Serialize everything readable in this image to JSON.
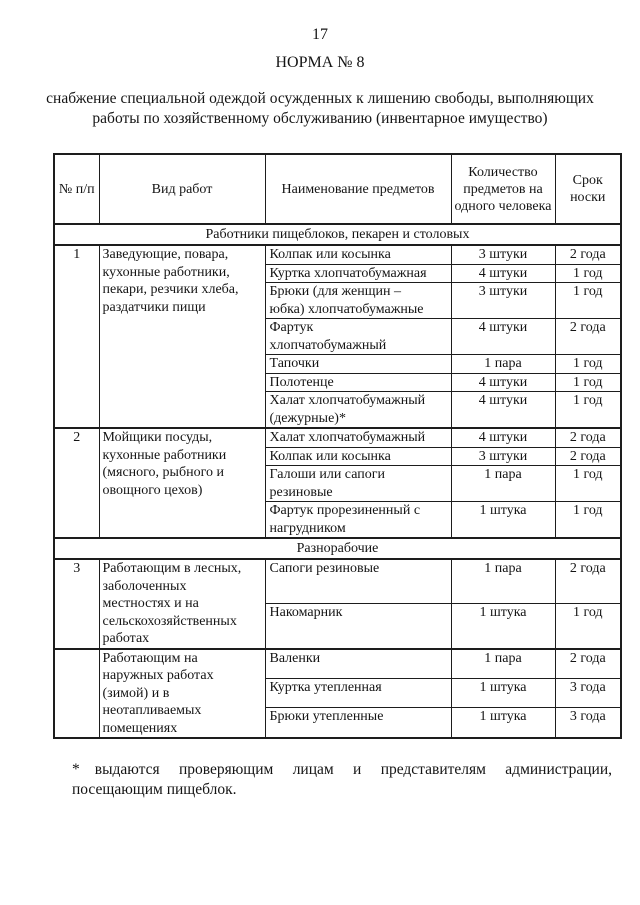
{
  "page": {
    "page_number": "17",
    "title": "НОРМА № 8",
    "subtitle": "снабжение специальной одеждой осужденных к лишению свободы, выполняющих\nработы по хозяйственному обслуживанию (инвентарное имущество)",
    "footnote_marker": "*",
    "footnote_text": "выдаются проверяющим лицам и представителям администрации, посещающим пищеблок."
  },
  "table": {
    "headers": [
      "№ п/п",
      "Вид работ",
      "Наименование предметов",
      "Количество предметов на одного человека",
      "Срок носки"
    ],
    "sections": [
      {
        "section_title": "Работники пищеблоков, пекарен и столовых",
        "groups": [
          {
            "num": "1",
            "work_type": "Заведующие, повара,\nкухонные работники,\nпекари, резчики хлеба,\nраздатчики пищи",
            "items": [
              {
                "name": "Колпак или косынка",
                "qty": "3 штуки",
                "term": "2 года"
              },
              {
                "name": "Куртка хлопчатобумажная",
                "qty": "4 штуки",
                "term": "1 год"
              },
              {
                "name": "Брюки (для женщин –\nюбка) хлопчатобумажные",
                "qty": "3 штуки",
                "term": "1 год"
              },
              {
                "name": "Фартук\nхлопчатобумажный",
                "qty": "4 штуки",
                "term": "2 года"
              },
              {
                "name": "Тапочки",
                "qty": "1 пара",
                "term": "1 год"
              },
              {
                "name": "Полотенце",
                "qty": "4 штуки",
                "term": "1 год"
              },
              {
                "name": "Халат хлопчатобумажный\n(дежурные)*",
                "qty": "4 штуки",
                "term": "1 год"
              }
            ]
          },
          {
            "num": "2",
            "work_type": "Мойщики посуды,\nкухонные работники\n(мясного, рыбного и\nовощного цехов)",
            "items": [
              {
                "name": "Халат хлопчатобумажный",
                "qty": "4 штуки",
                "term": "2 года"
              },
              {
                "name": "Колпак или косынка",
                "qty": "3 штуки",
                "term": "2 года"
              },
              {
                "name": "Галоши или сапоги\nрезиновые",
                "qty": "1 пара",
                "term": "1 год"
              },
              {
                "name": "Фартук прорезиненный с\nнагрудником",
                "qty": "1 штука",
                "term": "1 год"
              }
            ]
          }
        ]
      },
      {
        "section_title": "Разнорабочие",
        "groups": [
          {
            "num": "3",
            "work_type": "Работающим в лесных,\nзаболоченных\nместностях и на\nсельскохозяйственных\nработах",
            "items": [
              {
                "name": "Сапоги резиновые",
                "qty": "1 пара",
                "term": "2 года"
              },
              {
                "name": "Накомарник",
                "qty": "1 штука",
                "term": "1 год"
              }
            ]
          },
          {
            "num": "",
            "work_type": "Работающим на\nнаружных работах\n(зимой) и в\nнеотапливаемых\nпомещениях",
            "items": [
              {
                "name": "Валенки",
                "qty": "1 пара",
                "term": "2 года"
              },
              {
                "name": "Куртка утепленная",
                "qty": "1 штука",
                "term": "3 года"
              },
              {
                "name": "Брюки утепленные",
                "qty": "1 штука",
                "term": "3 года"
              }
            ]
          }
        ]
      }
    ]
  }
}
